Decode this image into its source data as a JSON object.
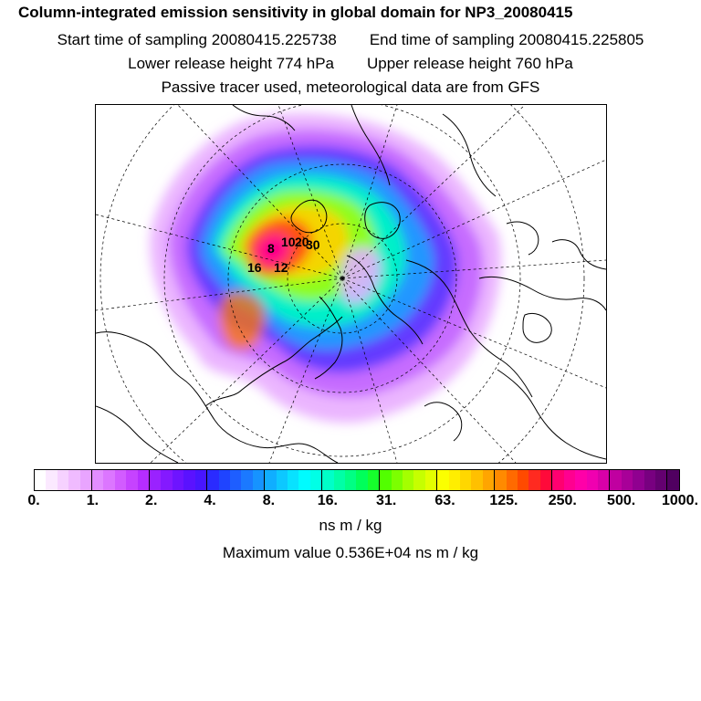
{
  "header": {
    "title": "Column-integrated emission sensitivity in global domain for NP3_20080415",
    "start_time": "Start time of sampling 20080415.225738",
    "end_time": "End time of sampling 20080415.225805",
    "lower_height": "Lower release height  774 hPa",
    "upper_height": "Upper release height  760 hPa",
    "tracer_note": "Passive tracer used, meteorological data are from GFS"
  },
  "map": {
    "projection": "polar stereographic, north pole",
    "release_labels": [
      "10",
      "20",
      "16",
      "8",
      "12",
      "30"
    ]
  },
  "colorbar": {
    "tick_labels": [
      "0.",
      "1.",
      "2.",
      "4.",
      "8.",
      "16.",
      "31.",
      "63.",
      "125.",
      "250.",
      "500.",
      "1000."
    ],
    "colors": [
      "#ffffff",
      "#fbe9ff",
      "#f6d2ff",
      "#f0bbff",
      "#e9a4ff",
      "#e38dff",
      "#dc76ff",
      "#d25cff",
      "#c643ff",
      "#b52dff",
      "#9a22ff",
      "#8419ff",
      "#6e14ff",
      "#5a12ff",
      "#4816ff",
      "#2a2bff",
      "#1f44ff",
      "#1e5eff",
      "#1b79ff",
      "#1693ff",
      "#10aeff",
      "#0dc8ff",
      "#08e2ff",
      "#00fbff",
      "#00ffe6",
      "#00ffc8",
      "#00ffa6",
      "#00ff84",
      "#00ff5a",
      "#16ff2c",
      "#52ff00",
      "#7cff00",
      "#a4ff00",
      "#c6ff00",
      "#e2ff00",
      "#fbff00",
      "#ffee00",
      "#ffd700",
      "#ffc000",
      "#ffa500",
      "#ff8a00",
      "#ff6a00",
      "#ff4a00",
      "#ff2a20",
      "#ff0a3a",
      "#ff0070",
      "#ff0090",
      "#ff00a8",
      "#f000b0",
      "#d800a8",
      "#c000a0",
      "#a80098",
      "#900090",
      "#780080",
      "#640070",
      "#500060"
    ],
    "unit": "ns m / kg"
  },
  "footer": {
    "max_value": "Maximum value  0.536E+04 ns m / kg"
  }
}
